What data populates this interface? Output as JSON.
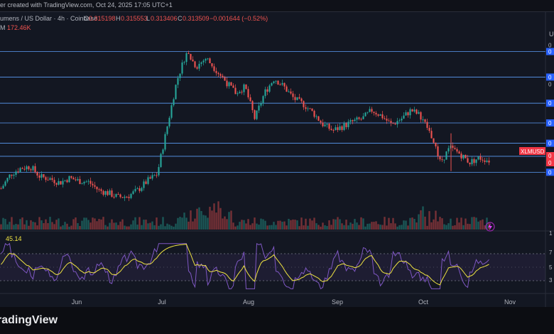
{
  "header": {
    "snapshot_text": "er created with TradingView.com, Oct 24, 2025 17:05 UTC+1"
  },
  "legend": {
    "symbol": "umens / US Dollar · 4h · Coinbase",
    "o_label": "O",
    "o": "0.315198",
    "h_label": "H",
    "h": "0.315553",
    "l_label": "L",
    "l": "0.313406",
    "c_label": "C",
    "c": "0.313509",
    "change": "−0.001644 (−0.52%)",
    "volume_label": "M",
    "volume": "172.46K",
    "up_color": "#26a69a",
    "down_color": "#ef5350"
  },
  "price_axis": {
    "top_label": "U",
    "line_labels": [
      "0",
      "0",
      "0",
      "0",
      "0",
      "0",
      "0",
      "0"
    ],
    "current_price_label": "XLMUSD",
    "right_values": [
      "0",
      "0"
    ],
    "current_color": "#f23645",
    "line_color": "#5b9cf6"
  },
  "volume_axis": {
    "label": "1"
  },
  "rsi": {
    "value_label": "45.14",
    "axis_labels": [
      "7",
      "5",
      "3"
    ],
    "upper_band": 70,
    "lower_band": 30,
    "rsi_color": "#7e57c2",
    "ma_color": "#f0e442"
  },
  "time_axis": {
    "labels": [
      "Jun",
      "Jul",
      "Aug",
      "Sep",
      "Oct",
      "Nov"
    ]
  },
  "footer": {
    "brand": "radingView"
  },
  "chart_data": {
    "type": "candlestick",
    "series_name": "XLMUSD",
    "price_range_visible": [
      0.22,
      0.52
    ],
    "timeframe": "4h",
    "x": [
      "2025-05-08",
      "2025-05-12",
      "2025-05-16",
      "2025-05-20",
      "2025-05-24",
      "2025-05-28",
      "2025-06-01",
      "2025-06-05",
      "2025-06-09",
      "2025-06-13",
      "2025-06-17",
      "2025-06-21",
      "2025-06-25",
      "2025-06-29",
      "2025-07-03",
      "2025-07-07",
      "2025-07-09",
      "2025-07-11",
      "2025-07-13",
      "2025-07-15",
      "2025-07-17",
      "2025-07-19",
      "2025-07-21",
      "2025-07-23",
      "2025-07-25",
      "2025-07-27",
      "2025-07-31",
      "2025-08-04",
      "2025-08-08",
      "2025-08-12",
      "2025-08-16",
      "2025-08-20",
      "2025-08-24",
      "2025-08-28",
      "2025-09-01",
      "2025-09-05",
      "2025-09-09",
      "2025-09-13",
      "2025-09-17",
      "2025-09-21",
      "2025-09-25",
      "2025-09-29",
      "2025-10-03",
      "2025-10-07",
      "2025-10-10",
      "2025-10-11",
      "2025-10-13",
      "2025-10-16",
      "2025-10-19",
      "2025-10-22",
      "2025-10-24"
    ],
    "close": [
      0.265,
      0.29,
      0.3,
      0.303,
      0.285,
      0.282,
      0.275,
      0.283,
      0.278,
      0.276,
      0.262,
      0.257,
      0.25,
      0.252,
      0.262,
      0.278,
      0.29,
      0.37,
      0.45,
      0.5,
      0.475,
      0.49,
      0.47,
      0.45,
      0.43,
      0.44,
      0.385,
      0.43,
      0.455,
      0.44,
      0.42,
      0.41,
      0.395,
      0.375,
      0.365,
      0.372,
      0.38,
      0.385,
      0.4,
      0.39,
      0.375,
      0.385,
      0.4,
      0.39,
      0.36,
      0.31,
      0.335,
      0.325,
      0.31,
      0.318,
      0.3135
    ],
    "volume_unit": "K"
  }
}
